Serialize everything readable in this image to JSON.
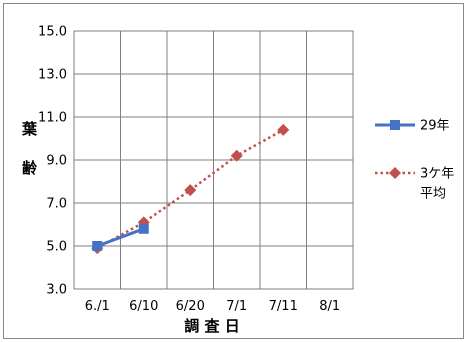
{
  "chart_data": {
    "type": "line",
    "xlabel": "調 査 日",
    "ylabel": "葉齢",
    "x_categories": [
      "6./1",
      "6/10",
      "6/20",
      "7/1",
      "7/11",
      "8/1"
    ],
    "ylim": [
      3.0,
      15.0
    ],
    "y_ticks": [
      "3.0",
      "5.0",
      "7.0",
      "9.0",
      "11.0",
      "13.0",
      "15.0"
    ],
    "grid": true,
    "legend_position": "right",
    "series": [
      {
        "name": "29年",
        "color": "#4472C4",
        "style": "solid",
        "marker": "square",
        "points": [
          {
            "x": "6./1",
            "y": 5.0
          },
          {
            "x": "6/10",
            "y": 5.8
          }
        ]
      },
      {
        "name": "3ケ年\n平均",
        "color": "#C0504D",
        "style": "dotted",
        "marker": "diamond",
        "points": [
          {
            "x": "6./1",
            "y": 4.9
          },
          {
            "x": "6/10",
            "y": 6.1
          },
          {
            "x": "6/20",
            "y": 7.6
          },
          {
            "x": "7/1",
            "y": 9.2
          },
          {
            "x": "7/11",
            "y": 10.4
          }
        ]
      }
    ]
  }
}
